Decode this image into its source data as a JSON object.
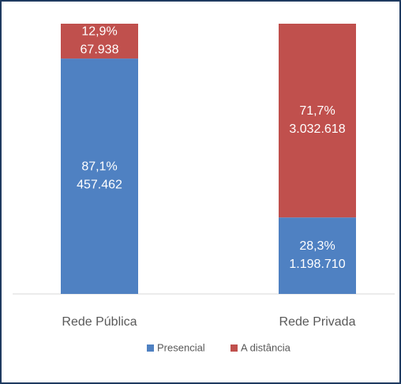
{
  "chart_data": {
    "type": "stacked_bar_100",
    "categories": [
      "Rede Pública",
      "Rede Privada"
    ],
    "series": [
      {
        "name": "Presencial",
        "color": "#4f81c2",
        "values": [
          87.1,
          28.3
        ],
        "value_labels": [
          "87,1%",
          "28,3%"
        ],
        "counts": [
          457462,
          1198710
        ],
        "count_labels": [
          "457.462",
          "1.198.710"
        ]
      },
      {
        "name": "A distância",
        "color": "#c0504d",
        "values": [
          12.9,
          71.7
        ],
        "value_labels": [
          "12,9%",
          "71,7%"
        ],
        "counts": [
          67938,
          3032618
        ],
        "count_labels": [
          "67.938",
          "3.032.618"
        ]
      }
    ],
    "legend": "bottom"
  }
}
